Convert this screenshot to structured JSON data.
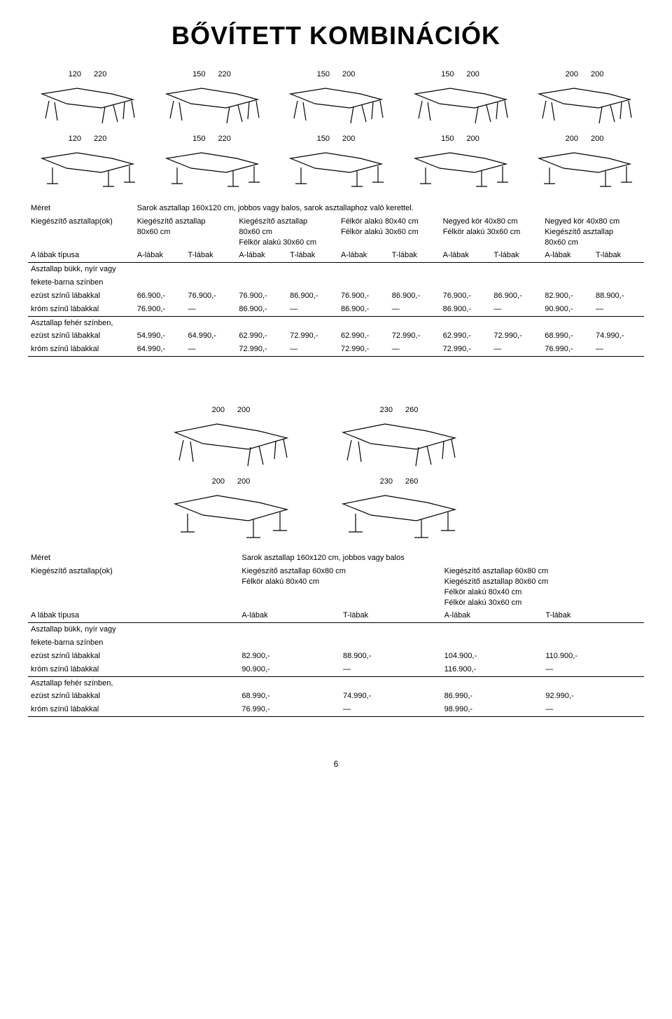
{
  "title": "BŐVÍTETT KOMBINÁCIÓK",
  "page_number": "6",
  "block1": {
    "dims_top": [
      [
        "120",
        "220"
      ],
      [
        "150",
        "220"
      ],
      [
        "150",
        "200"
      ],
      [
        "150",
        "200"
      ],
      [
        "200",
        "200"
      ]
    ],
    "dims_bottom": [
      [
        "120",
        "220"
      ],
      [
        "150",
        "220"
      ],
      [
        "150",
        "200"
      ],
      [
        "150",
        "200"
      ],
      [
        "200",
        "200"
      ]
    ],
    "meret_label": "Méret",
    "meret_value": "Sarok asztallap 160x120 cm, jobbos vagy balos, sarok asztallaphoz való kerettel.",
    "kieg_label": "Kiegészítő asztallap(ok)",
    "kieg_cols": [
      [
        "Kiegészítő asztallap",
        "80x60 cm"
      ],
      [
        "Kiegészítő asztallap",
        "80x60 cm",
        "Félkör alakú 30x60 cm"
      ],
      [
        "Félkör alakú 80x40 cm",
        "Félkör alakú 30x60 cm"
      ],
      [
        "Negyed kör 40x80 cm",
        "Félkör alakú 30x60 cm"
      ],
      [
        "Negyed kör 40x80 cm",
        "Kiegészítő asztallap",
        "80x60 cm"
      ]
    ],
    "labak_label": "A lábak típusa",
    "labak_sub": [
      "A-lábak",
      "T-lábak"
    ],
    "group1_heading_l1": "Asztallap bükk, nyír vagy",
    "group1_heading_l2": "fekete-barna színben",
    "row_ezust": "ezüst színű lábakkal",
    "row_krom": "króm színű lábakkal",
    "group1_r1": [
      [
        "66.900,-",
        "76.900,-"
      ],
      [
        "76.900,-",
        "86.900,-"
      ],
      [
        "76.900,-",
        "86.900,-"
      ],
      [
        "76.900,-",
        "86.900,-"
      ],
      [
        "82.900,-",
        "88.900,-"
      ]
    ],
    "group1_r2": [
      [
        "76.900,-",
        "—"
      ],
      [
        "86.900,-",
        "—"
      ],
      [
        "86.900,-",
        "—"
      ],
      [
        "86.900,-",
        "—"
      ],
      [
        "90.900,-",
        "—"
      ]
    ],
    "group2_heading": "Asztallap fehér színben,",
    "group2_r1": [
      [
        "54.990,-",
        "64.990,-"
      ],
      [
        "62.990,-",
        "72.990,-"
      ],
      [
        "62.990,-",
        "72.990,-"
      ],
      [
        "62.990,-",
        "72.990,-"
      ],
      [
        "68.990,-",
        "74.990,-"
      ]
    ],
    "group2_r2": [
      [
        "64.990,-",
        "—"
      ],
      [
        "72.990,-",
        "—"
      ],
      [
        "72.990,-",
        "—"
      ],
      [
        "72.990,-",
        "—"
      ],
      [
        "76.990,-",
        "—"
      ]
    ]
  },
  "block2": {
    "dims_top": [
      [
        "200",
        "200"
      ],
      [
        "230",
        "260"
      ]
    ],
    "dims_bottom": [
      [
        "200",
        "200"
      ],
      [
        "230",
        "260"
      ]
    ],
    "meret_label": "Méret",
    "meret_value": "Sarok asztallap 160x120 cm, jobbos vagy balos",
    "kieg_label": "Kiegészítő asztallap(ok)",
    "kieg_cols": [
      [
        "Kiegészítő asztallap 60x80 cm",
        "Félkör alakú 80x40 cm"
      ],
      [
        "Kiegészítő asztallap 60x80 cm",
        "Kiegészítő asztallap 80x60 cm",
        "Félkör alakú 80x40 cm",
        "Félkör alakú 30x60 cm"
      ]
    ],
    "labak_label": "A lábak típusa",
    "labak_sub": [
      "A-lábak",
      "T-lábak"
    ],
    "group1_heading_l1": "Asztallap bükk, nyír vagy",
    "group1_heading_l2": "fekete-barna színben",
    "row_ezust": "ezüst színű lábakkal",
    "row_krom": "króm színű lábakkal",
    "group1_r1": [
      [
        "82.900,-",
        "88.900,-"
      ],
      [
        "104.900,-",
        "110.900,-"
      ]
    ],
    "group1_r2": [
      [
        "90.900,-",
        "—"
      ],
      [
        "116.900,-",
        "—"
      ]
    ],
    "group2_heading": "Asztallap fehér színben,",
    "group2_r1": [
      [
        "68.990,-",
        "74.990,-"
      ],
      [
        "86.990,-",
        "92.990,-"
      ]
    ],
    "group2_r2": [
      [
        "76.990,-",
        "—"
      ],
      [
        "98.990,-",
        "—"
      ]
    ]
  }
}
